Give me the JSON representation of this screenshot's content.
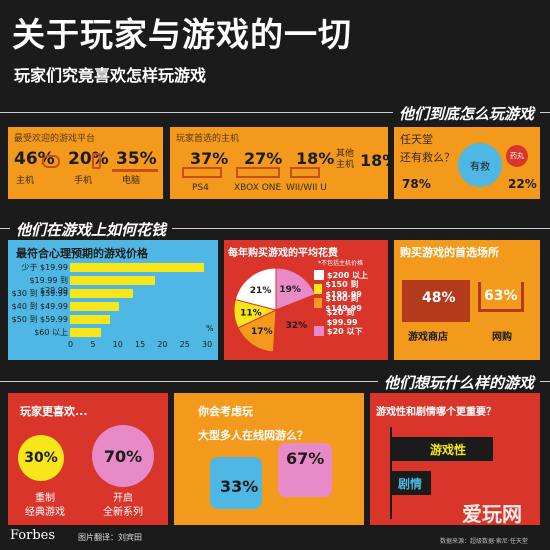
{
  "header": {
    "title": "关于玩家与游戏的一切",
    "subtitle": "玩家们究竟喜欢怎样玩游戏"
  },
  "sections": {
    "s1": "他们到底怎么玩游戏",
    "s2": "他们在游戏上如何花钱",
    "s3": "他们想玩什么样的游戏"
  },
  "platforms": {
    "title": "最受欢迎的游戏平台",
    "items": [
      {
        "label": "主机",
        "value": "46%"
      },
      {
        "label": "手机",
        "value": "20%"
      },
      {
        "label": "电脑",
        "value": "35%"
      }
    ]
  },
  "consoles": {
    "title": "玩家首选的主机",
    "items": [
      {
        "label": "PS4",
        "value": "37%"
      },
      {
        "label": "XBOX ONE",
        "value": "27%"
      },
      {
        "label": "WII/WII U",
        "value": "18%"
      },
      {
        "label": "其他主机",
        "value": "18%"
      }
    ]
  },
  "nintendo": {
    "title": "任天堂",
    "question": "还有救么？",
    "yes_label": "有救",
    "yes_value": "78%",
    "no_label": "药丸",
    "no_value": "22%"
  },
  "price_chart": {
    "title": "最符合心理预期的游戏价格",
    "axis_unit": "%"
  },
  "chart_data": [
    {
      "type": "bar",
      "title": "最符合心理预期的游戏价格",
      "categories": [
        "少于 $19.99",
        "$19.99 到 $29.99",
        "$30 到 $39.99",
        "$40 到 $49.99",
        "$50 到 $59.99",
        "$60 以上"
      ],
      "values": [
        30,
        19,
        14,
        11,
        9,
        7
      ],
      "xticks": [
        "0",
        "5",
        "10",
        "15",
        "20",
        "25",
        "30"
      ],
      "xlim": [
        0,
        30
      ],
      "xlabel": "%"
    },
    {
      "type": "pie",
      "title": "每年购买游戏的平均花费",
      "subtitle": "*不包括主机价格",
      "categories": [
        "$200 以上",
        "$150 到 $199.99",
        "$100 到 $149.99",
        "$20 到 $99.99",
        "$20 以下"
      ],
      "values": [
        21,
        11,
        17,
        32,
        19
      ],
      "labels": [
        "21%",
        "11%",
        "17%",
        "32%",
        "19%"
      ],
      "colors": [
        "#ffffff",
        "#f6e61a",
        "#f39a1c",
        "#d9352b",
        "#e88ac8"
      ]
    }
  ],
  "spending": {
    "title": "每年购买游戏的平均花费",
    "note": "*不包括主机价格"
  },
  "stores": {
    "title": "购买游戏的首选场所",
    "store_label": "游戏商店",
    "store_value": "48%",
    "online_label": "网购",
    "online_value": "63%"
  },
  "prefer": {
    "title": "玩家更喜欢...",
    "classic_value": "30%",
    "classic_label1": "重制",
    "classic_label2": "经典游戏",
    "new_value": "70%",
    "new_label1": "开启",
    "new_label2": "全新系列"
  },
  "mmo": {
    "title": "你会考虑玩",
    "question": "大型多人在线网游么？",
    "yes_value": "33%",
    "no_value": "67%"
  },
  "story": {
    "title": "游戏性和剧情哪个更重要？",
    "gameplay_label": "游戏性",
    "story_label": "剧情",
    "gameplay_share": 0.72,
    "story_share": 0.28
  },
  "footer": {
    "brand": "Forbes",
    "credit": "图片翻译：刘宾田",
    "watermark": "爱玩网",
    "source": "数据来源：超级数据·索尼·任天堂"
  }
}
